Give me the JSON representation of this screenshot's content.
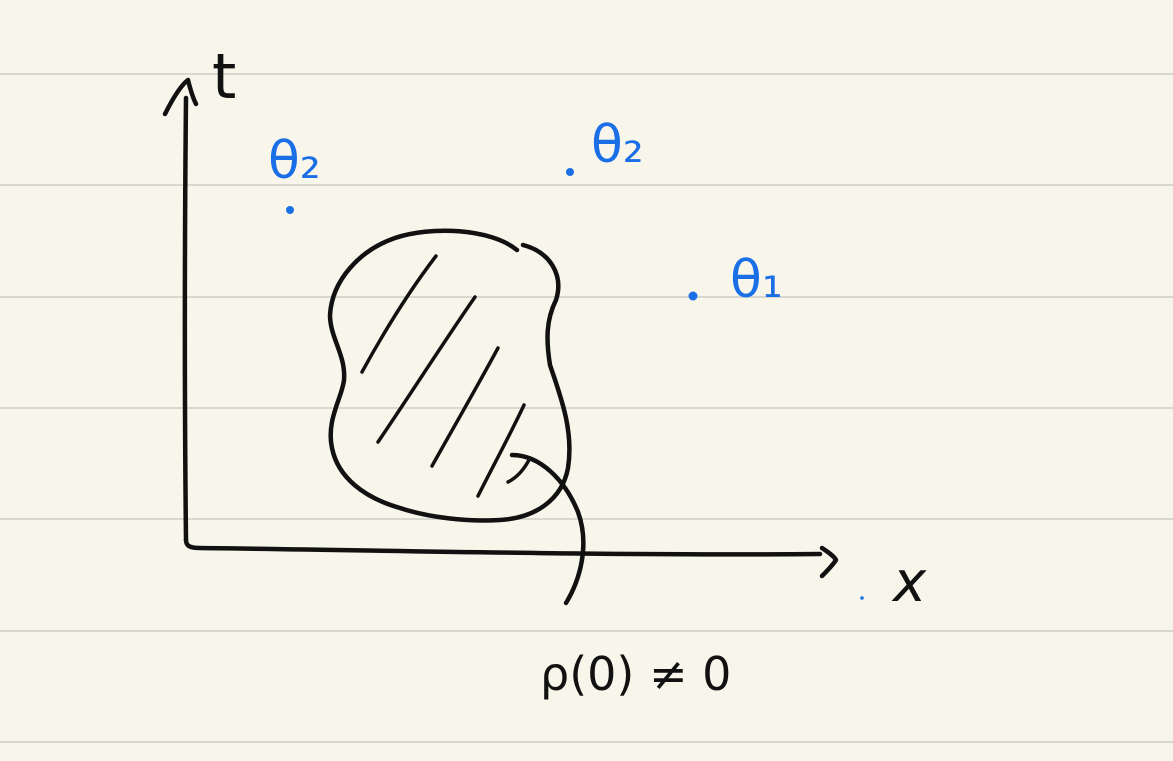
{
  "colors": {
    "paper": "#f8f6eb",
    "ink": "#111111",
    "accent_blue": "#1a6fe6",
    "ruled_line": "#d9d8d0"
  },
  "axes": {
    "vertical_label": "t",
    "horizontal_label": "x"
  },
  "points": [
    {
      "name": "theta-2-left",
      "label": "θ₂"
    },
    {
      "name": "theta-2-top",
      "label": "θ₂"
    },
    {
      "name": "theta-1",
      "label": "θ₁"
    }
  ],
  "region": {
    "annotation": "ρ(0) ≠ 0"
  }
}
